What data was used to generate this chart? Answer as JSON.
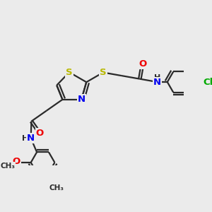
{
  "bg_color": "#ebebeb",
  "bond_color": "#2a2a2a",
  "bond_width": 1.6,
  "colors": {
    "S": "#b8b800",
    "N": "#0000ee",
    "O": "#ee0000",
    "Cl": "#00aa00",
    "C": "#2a2a2a",
    "H": "#2a2a2a"
  },
  "font_size": 9.5,
  "fig_size": [
    3.0,
    3.0
  ],
  "dpi": 100
}
